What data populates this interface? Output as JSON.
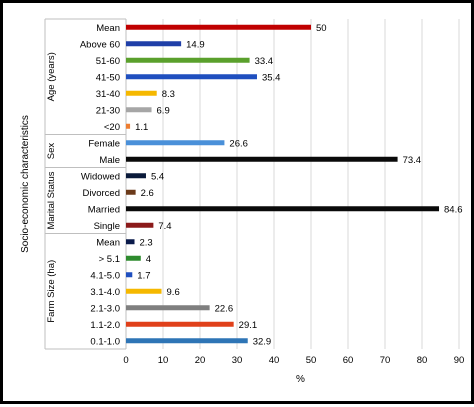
{
  "chart_data": {
    "type": "bar",
    "orientation": "horizontal",
    "xlabel": "%",
    "ylabel": "Socio-economic characteristics",
    "xlim": [
      0,
      90
    ],
    "xticks": [
      "0",
      "10",
      "20",
      "30",
      "40",
      "50",
      "60",
      "70",
      "80",
      "90"
    ],
    "grid": true,
    "groups": [
      {
        "name": "Age (years)",
        "items": [
          {
            "label": "Mean",
            "value": 50,
            "value_label": "50",
            "color": "#c00000"
          },
          {
            "label": "Above 60",
            "value": 14.9,
            "value_label": "14.9",
            "color": "#1f3fa8"
          },
          {
            "label": "51-60",
            "value": 33.4,
            "value_label": "33.4",
            "color": "#5aa02c"
          },
          {
            "label": "41-50",
            "value": 35.4,
            "value_label": "35.4",
            "color": "#1f4fbf"
          },
          {
            "label": "31-40",
            "value": 8.3,
            "value_label": "8.3",
            "color": "#f5b800"
          },
          {
            "label": "21-30",
            "value": 6.9,
            "value_label": "6.9",
            "color": "#a6a6a6"
          },
          {
            "label": "<20",
            "value": 1.1,
            "value_label": "1.1",
            "color": "#ed7d31"
          }
        ]
      },
      {
        "name": "Sex",
        "items": [
          {
            "label": "Female",
            "value": 26.6,
            "value_label": "26.6",
            "color": "#4a90d9"
          },
          {
            "label": "Male",
            "value": 73.4,
            "value_label": "73.4",
            "color": "#0a0a0a"
          }
        ]
      },
      {
        "name": "Marital Status",
        "items": [
          {
            "label": "Widowed",
            "value": 5.4,
            "value_label": "5.4",
            "color": "#0a1a3a"
          },
          {
            "label": "Divorced",
            "value": 2.6,
            "value_label": "2.6",
            "color": "#6b3a1a"
          },
          {
            "label": "Married",
            "value": 84.6,
            "value_label": "84.6",
            "color": "#0a0a0a"
          },
          {
            "label": "Single",
            "value": 7.4,
            "value_label": "7.4",
            "color": "#8b1a1a"
          }
        ]
      },
      {
        "name": "Farm Size (ha)",
        "items": [
          {
            "label": "Mean",
            "value": 2.3,
            "value_label": "2.3",
            "color": "#0a1a4a"
          },
          {
            "label": "> 5.1",
            "value": 4,
            "value_label": "4",
            "color": "#2e8b2e"
          },
          {
            "label": "4.1-5.0",
            "value": 1.7,
            "value_label": "1.7",
            "color": "#1f4fbf"
          },
          {
            "label": "3.1-4.0",
            "value": 9.6,
            "value_label": "9.6",
            "color": "#f5b800"
          },
          {
            "label": "2.1-3.0",
            "value": 22.6,
            "value_label": "22.6",
            "color": "#7f7f7f"
          },
          {
            "label": "1.1-2.0",
            "value": 29.1,
            "value_label": "29.1",
            "color": "#e0401a"
          },
          {
            "label": "0.1-1.0",
            "value": 32.9,
            "value_label": "32.9",
            "color": "#2e75b6"
          }
        ]
      }
    ]
  }
}
